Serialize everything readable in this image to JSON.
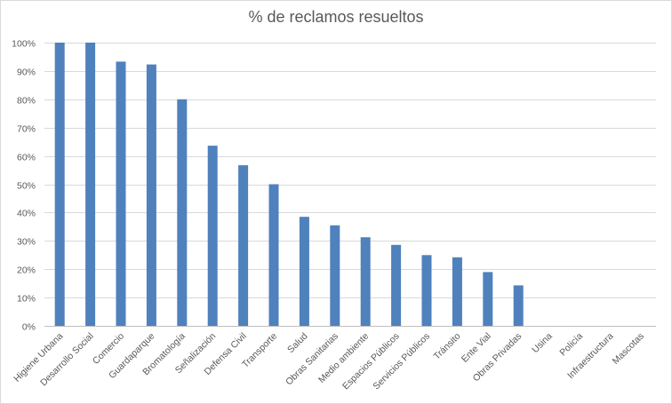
{
  "chart_data": {
    "type": "bar",
    "title": "% de reclamos resueltos",
    "xlabel": "",
    "ylabel": "",
    "ylim": [
      0,
      100
    ],
    "ytick_step": 10,
    "ytick_suffix": "%",
    "grid": true,
    "legend": "none",
    "categories": [
      "Higiene Urbana",
      "Desarrollo Social",
      "Comercio",
      "Guardaparque",
      "Bromatología",
      "Señalización",
      "Defensa Civil",
      "Transporte",
      "Salud",
      "Obras Sanitarias",
      "Medio ambiente",
      "Espacios Públicos",
      "Servicios Públicos",
      "Tránsito",
      "Ente Vial",
      "Obras Privadas",
      "Usina",
      "Policía",
      "Infraestructura",
      "Mascotas"
    ],
    "series": [
      {
        "values": [
          100,
          100,
          93.3,
          92.3,
          80,
          63.6,
          56.7,
          50,
          38.5,
          35.5,
          31.3,
          28.6,
          25,
          24.2,
          19,
          14.3,
          0,
          0,
          0,
          0
        ],
        "color": "#4f81bd"
      }
    ]
  }
}
